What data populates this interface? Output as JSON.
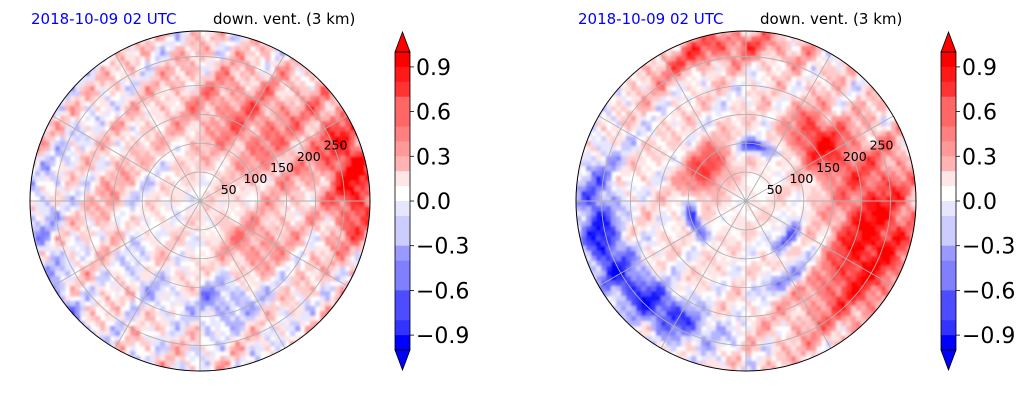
{
  "colors": {
    "positive": "#ff0000",
    "negative": "#0000ff",
    "neutral": "#ffffff",
    "date_text": "#0000ff",
    "grid": "#b0b0b0"
  },
  "chart_data": [
    {
      "type": "heatmap",
      "projection": "polar",
      "title_left": "2018-10-09 02 UTC",
      "title_right": "down. vent. (3 km)",
      "radial_ticks": [
        "50",
        "100",
        "150",
        "200",
        "250"
      ],
      "radial_max": 250,
      "colormap": "bwr",
      "clim": [
        -1,
        1
      ],
      "colorbar_ticks": [
        "0.9",
        "0.6",
        "0.3",
        "0.0",
        "−0.3",
        "−0.6",
        "−0.9"
      ],
      "colorbar_extend": "both",
      "grid": true
    },
    {
      "type": "heatmap",
      "projection": "polar",
      "title_left": "2018-10-09 02 UTC",
      "title_right": "down. vent. (3 km)",
      "radial_ticks": [
        "50",
        "100",
        "150",
        "200",
        "250"
      ],
      "radial_max": 250,
      "colormap": "bwr",
      "clim": [
        -1,
        1
      ],
      "colorbar_ticks": [
        "0.9",
        "0.6",
        "0.3",
        "0.0",
        "−0.3",
        "−0.6",
        "−0.9"
      ],
      "colorbar_extend": "both",
      "grid": true
    }
  ]
}
